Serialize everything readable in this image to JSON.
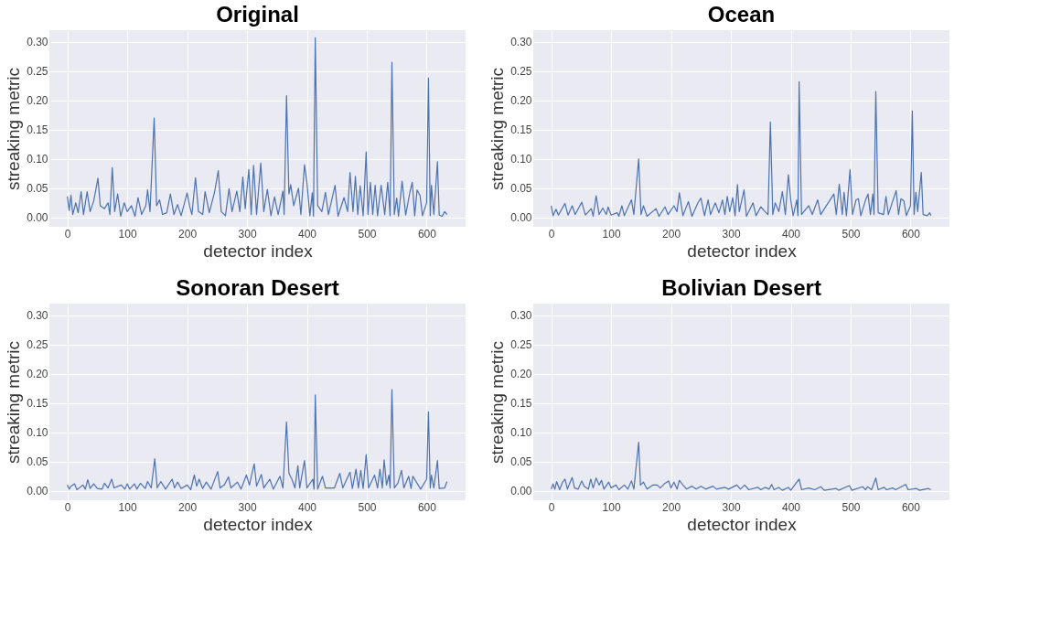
{
  "chart_data": [
    {
      "type": "line",
      "title": "Original",
      "xlabel": "detector index",
      "ylabel": "streaking metric",
      "grid": true,
      "xlim": [
        -30,
        665
      ],
      "ylim": [
        -0.016,
        0.32
      ],
      "xticks": [
        0,
        100,
        200,
        300,
        400,
        500,
        600
      ],
      "yticks": [
        {
          "value": 0,
          "label": "0.00"
        },
        {
          "value": 0.05,
          "label": "0.05"
        },
        {
          "value": 0.1,
          "label": "0.10"
        },
        {
          "value": 0.15,
          "label": "0.15"
        },
        {
          "value": 0.2,
          "label": "0.20"
        },
        {
          "value": 0.25,
          "label": "0.25"
        },
        {
          "value": 0.3,
          "label": "0.30"
        }
      ],
      "series": [
        {
          "color": "#4c72b0",
          "x": [
            0,
            3,
            6,
            9,
            14,
            18,
            23,
            27,
            33,
            38,
            44,
            48,
            51,
            55,
            62,
            68,
            71,
            75,
            79,
            84,
            89,
            95,
            100,
            107,
            113,
            118,
            124,
            131,
            134,
            138,
            145,
            149,
            154,
            159,
            166,
            172,
            178,
            184,
            190,
            200,
            204,
            208,
            214,
            219,
            226,
            230,
            237,
            246,
            252,
            257,
            264,
            270,
            275,
            283,
            288,
            293,
            297,
            303,
            307,
            311,
            316,
            323,
            328,
            334,
            340,
            346,
            352,
            360,
            362,
            366,
            370,
            373,
            378,
            386,
            390,
            396,
            400,
            405,
            409,
            411,
            414,
            418,
            425,
            431,
            436,
            447,
            452,
            462,
            468,
            472,
            477,
            481,
            485,
            489,
            494,
            499,
            502,
            506,
            510,
            514,
            518,
            524,
            530,
            535,
            539,
            542,
            546,
            550,
            553,
            559,
            565,
            572,
            576,
            580,
            584,
            589,
            593,
            600,
            603,
            606,
            608,
            612,
            618,
            621,
            626,
            630,
            634
          ],
          "values": [
            0.036,
            0.012,
            0.038,
            0.005,
            0.025,
            0.008,
            0.044,
            0.005,
            0.044,
            0.01,
            0.028,
            0.05,
            0.067,
            0.02,
            0.015,
            0.025,
            0.005,
            0.085,
            0.01,
            0.04,
            0.002,
            0.025,
            0.01,
            0.02,
            0.002,
            0.034,
            0.005,
            0.02,
            0.047,
            0.01,
            0.17,
            0.02,
            0.03,
            0.005,
            0.008,
            0.04,
            0.005,
            0.022,
            0.003,
            0.042,
            0.02,
            0.005,
            0.068,
            0.01,
            0.005,
            0.044,
            0.008,
            0.044,
            0.08,
            0.01,
            0.003,
            0.049,
            0.01,
            0.045,
            0.01,
            0.069,
            0.015,
            0.082,
            0.005,
            0.089,
            0.005,
            0.093,
            0.01,
            0.048,
            0.003,
            0.035,
            0.005,
            0.045,
            0.005,
            0.208,
            0.04,
            0.056,
            0.02,
            0.05,
            0.005,
            0.09,
            0.06,
            0.003,
            0.042,
            0.002,
            0.307,
            0.02,
            0.01,
            0.043,
            0.005,
            0.055,
            0.002,
            0.034,
            0.01,
            0.077,
            0.01,
            0.07,
            0.005,
            0.054,
            0.003,
            0.112,
            0.005,
            0.06,
            0.005,
            0.055,
            0.003,
            0.055,
            0.005,
            0.06,
            0.003,
            0.265,
            0.005,
            0.033,
            0.002,
            0.062,
            0.004,
            0.043,
            0.06,
            0.003,
            0.047,
            0.037,
            0.003,
            0.025,
            0.238,
            0.003,
            0.055,
            0.005,
            0.095,
            0.004,
            0.002,
            0.01,
            0.005
          ]
        }
      ]
    },
    {
      "type": "line",
      "title": "Ocean",
      "xlabel": "detector index",
      "ylabel": "streaking metric",
      "grid": true,
      "xlim": [
        -30,
        665
      ],
      "ylim": [
        -0.016,
        0.32
      ],
      "xticks": [
        0,
        100,
        200,
        300,
        400,
        500,
        600
      ],
      "yticks": [
        {
          "value": 0,
          "label": "0.00"
        },
        {
          "value": 0.05,
          "label": "0.05"
        },
        {
          "value": 0.1,
          "label": "0.10"
        },
        {
          "value": 0.15,
          "label": "0.15"
        },
        {
          "value": 0.2,
          "label": "0.20"
        },
        {
          "value": 0.25,
          "label": "0.25"
        },
        {
          "value": 0.3,
          "label": "0.30"
        }
      ],
      "series": [
        {
          "color": "#4c72b0",
          "x": [
            0,
            3,
            8,
            12,
            23,
            28,
            35,
            40,
            51,
            57,
            67,
            70,
            75,
            80,
            86,
            92,
            95,
            100,
            110,
            113,
            118,
            122,
            134,
            138,
            146,
            150,
            154,
            160,
            175,
            180,
            190,
            195,
            205,
            210,
            214,
            220,
            229,
            235,
            245,
            250,
            256,
            262,
            266,
            274,
            280,
            286,
            290,
            294,
            298,
            303,
            307,
            311,
            314,
            322,
            326,
            337,
            342,
            350,
            357,
            362,
            366,
            370,
            374,
            380,
            386,
            391,
            396,
            400,
            404,
            410,
            412,
            414,
            418,
            430,
            436,
            445,
            450,
            472,
            476,
            481,
            486,
            489,
            493,
            499,
            503,
            509,
            513,
            517,
            525,
            529,
            533,
            537,
            539,
            542,
            546,
            555,
            559,
            563,
            576,
            580,
            584,
            589,
            593,
            600,
            603,
            606,
            609,
            612,
            618,
            621,
            628,
            632,
            634
          ],
          "values": [
            0.02,
            0.003,
            0.014,
            0.004,
            0.024,
            0.004,
            0.02,
            0.005,
            0.026,
            0.004,
            0.015,
            0.002,
            0.037,
            0.005,
            0.016,
            0.005,
            0.018,
            0.004,
            0.008,
            0.002,
            0.02,
            0.003,
            0.03,
            0.005,
            0.1,
            0.005,
            0.02,
            0.002,
            0.015,
            0.002,
            0.018,
            0.005,
            0.02,
            0.01,
            0.042,
            0.003,
            0.027,
            0.002,
            0.025,
            0.033,
            0.003,
            0.03,
            0.005,
            0.025,
            0.008,
            0.03,
            0.005,
            0.036,
            0.01,
            0.034,
            0.003,
            0.056,
            0.01,
            0.047,
            0.002,
            0.025,
            0.003,
            0.018,
            0.01,
            0.005,
            0.163,
            0.005,
            0.025,
            0.01,
            0.044,
            0.005,
            0.073,
            0.03,
            0.003,
            0.03,
            0.003,
            0.232,
            0.005,
            0.02,
            0.005,
            0.03,
            0.005,
            0.04,
            0.005,
            0.057,
            0.005,
            0.043,
            0.003,
            0.082,
            0.005,
            0.03,
            0.032,
            0.003,
            0.03,
            0.04,
            0.005,
            0.04,
            0.005,
            0.215,
            0.008,
            0.005,
            0.036,
            0.005,
            0.046,
            0.005,
            0.032,
            0.028,
            0.003,
            0.02,
            0.182,
            0.005,
            0.043,
            0.01,
            0.077,
            0.005,
            0.003,
            0.008,
            0.003
          ]
        }
      ]
    },
    {
      "type": "line",
      "title": "Sonoran Desert",
      "xlabel": "detector index",
      "ylabel": "streaking metric",
      "grid": true,
      "xlim": [
        -30,
        665
      ],
      "ylim": [
        -0.016,
        0.32
      ],
      "xticks": [
        0,
        100,
        200,
        300,
        400,
        500,
        600
      ],
      "yticks": [
        {
          "value": 0,
          "label": "0.00"
        },
        {
          "value": 0.05,
          "label": "0.05"
        },
        {
          "value": 0.1,
          "label": "0.10"
        },
        {
          "value": 0.15,
          "label": "0.15"
        },
        {
          "value": 0.2,
          "label": "0.20"
        },
        {
          "value": 0.25,
          "label": "0.25"
        },
        {
          "value": 0.3,
          "label": "0.30"
        }
      ],
      "series": [
        {
          "color": "#4c72b0",
          "x": [
            0,
            3,
            6,
            12,
            16,
            26,
            30,
            34,
            38,
            44,
            50,
            58,
            62,
            68,
            74,
            78,
            90,
            96,
            100,
            104,
            112,
            116,
            122,
            130,
            134,
            140,
            146,
            150,
            156,
            164,
            175,
            179,
            184,
            190,
            200,
            206,
            212,
            216,
            220,
            226,
            232,
            240,
            251,
            255,
            262,
            269,
            273,
            284,
            290,
            299,
            304,
            312,
            316,
            324,
            328,
            338,
            344,
            355,
            360,
            366,
            370,
            375,
            380,
            385,
            388,
            396,
            400,
            410,
            412,
            414,
            418,
            426,
            431,
            446,
            455,
            460,
            472,
            476,
            482,
            486,
            490,
            494,
            499,
            503,
            513,
            518,
            522,
            526,
            529,
            533,
            537,
            539,
            542,
            546,
            552,
            558,
            562,
            570,
            574,
            577,
            590,
            600,
            603,
            606,
            608,
            612,
            618,
            621,
            630,
            634
          ],
          "values": [
            0.01,
            0.003,
            0.008,
            0.012,
            0.002,
            0.01,
            0.003,
            0.019,
            0.004,
            0.012,
            0.004,
            0.003,
            0.013,
            0.005,
            0.02,
            0.005,
            0.01,
            0.003,
            0.012,
            0.003,
            0.012,
            0.003,
            0.013,
            0.004,
            0.016,
            0.005,
            0.055,
            0.005,
            0.016,
            0.003,
            0.02,
            0.005,
            0.015,
            0.004,
            0.01,
            0.002,
            0.027,
            0.008,
            0.02,
            0.004,
            0.015,
            0.003,
            0.033,
            0.005,
            0.01,
            0.024,
            0.005,
            0.015,
            0.003,
            0.027,
            0.01,
            0.046,
            0.008,
            0.028,
            0.005,
            0.02,
            0.003,
            0.025,
            0.005,
            0.118,
            0.03,
            0.02,
            0.005,
            0.043,
            0.005,
            0.052,
            0.005,
            0.02,
            0.003,
            0.164,
            0.003,
            0.025,
            0.005,
            0.005,
            0.03,
            0.005,
            0.032,
            0.004,
            0.037,
            0.005,
            0.035,
            0.004,
            0.062,
            0.005,
            0.027,
            0.005,
            0.037,
            0.005,
            0.053,
            0.01,
            0.027,
            0.005,
            0.173,
            0.005,
            0.013,
            0.035,
            0.005,
            0.025,
            0.004,
            0.025,
            0.003,
            0.02,
            0.135,
            0.005,
            0.027,
            0.005,
            0.052,
            0.004,
            0.005,
            0.016
          ]
        }
      ]
    },
    {
      "type": "line",
      "title": "Bolivian Desert",
      "xlabel": "detector index",
      "ylabel": "streaking metric",
      "grid": true,
      "xlim": [
        -30,
        665
      ],
      "ylim": [
        -0.016,
        0.32
      ],
      "xticks": [
        0,
        100,
        200,
        300,
        400,
        500,
        600
      ],
      "yticks": [
        {
          "value": 0,
          "label": "0.00"
        },
        {
          "value": 0.05,
          "label": "0.05"
        },
        {
          "value": 0.1,
          "label": "0.10"
        },
        {
          "value": 0.15,
          "label": "0.15"
        },
        {
          "value": 0.2,
          "label": "0.20"
        },
        {
          "value": 0.25,
          "label": "0.25"
        },
        {
          "value": 0.3,
          "label": "0.30"
        }
      ],
      "series": [
        {
          "color": "#4c72b0",
          "x": [
            0,
            3,
            6,
            9,
            14,
            19,
            23,
            27,
            35,
            39,
            45,
            51,
            55,
            62,
            66,
            70,
            75,
            80,
            84,
            88,
            96,
            100,
            108,
            113,
            122,
            128,
            134,
            138,
            146,
            149,
            154,
            160,
            170,
            177,
            182,
            190,
            196,
            200,
            205,
            210,
            214,
            220,
            226,
            235,
            242,
            250,
            258,
            270,
            276,
            290,
            296,
            310,
            316,
            323,
            330,
            345,
            350,
            357,
            364,
            368,
            372,
            380,
            386,
            396,
            400,
            414,
            418,
            430,
            440,
            450,
            456,
            476,
            480,
            498,
            502,
            520,
            525,
            528,
            535,
            542,
            546,
            556,
            560,
            570,
            575,
            592,
            596,
            610,
            615,
            630,
            634
          ],
          "values": [
            0.003,
            0.012,
            0.003,
            0.016,
            0.002,
            0.015,
            0.02,
            0.003,
            0.023,
            0.005,
            0.003,
            0.017,
            0.008,
            0.003,
            0.02,
            0.005,
            0.022,
            0.01,
            0.018,
            0.003,
            0.015,
            0.005,
            0.01,
            0.002,
            0.01,
            0.003,
            0.017,
            0.003,
            0.083,
            0.01,
            0.015,
            0.003,
            0.01,
            0.01,
            0.005,
            0.013,
            0.017,
            0.005,
            0.015,
            0.003,
            0.018,
            0.01,
            0.003,
            0.008,
            0.003,
            0.008,
            0.003,
            0.008,
            0.003,
            0.006,
            0.003,
            0.01,
            0.003,
            0.01,
            0.002,
            0.006,
            0.002,
            0.006,
            0.003,
            0.011,
            0.002,
            0.006,
            0.001,
            0.006,
            0.001,
            0.02,
            0.002,
            0.005,
            0.002,
            0.007,
            0.001,
            0.004,
            0.001,
            0.009,
            0.001,
            0.007,
            0.002,
            0.007,
            0.002,
            0.022,
            0.002,
            0.006,
            0.002,
            0.005,
            0.002,
            0.011,
            0.002,
            0.004,
            0.001,
            0.004,
            0.002
          ]
        }
      ]
    }
  ]
}
